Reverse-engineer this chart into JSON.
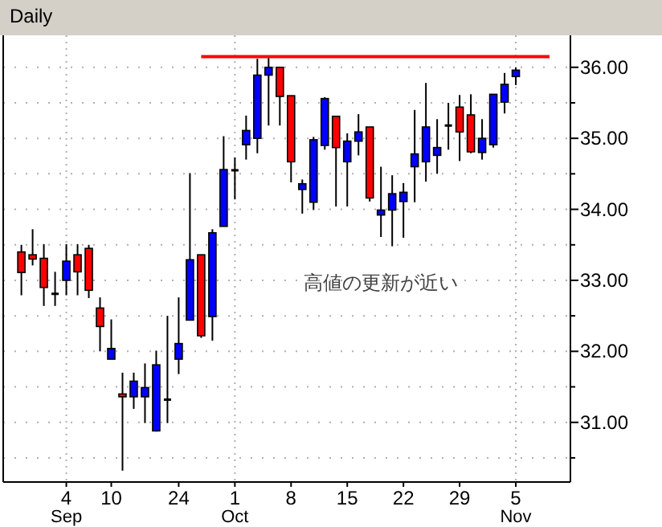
{
  "chart_data": {
    "type": "candlestick",
    "title": "Daily",
    "categories": [
      null,
      null,
      null,
      null,
      "4\nSep",
      null,
      null,
      null,
      "10",
      null,
      null,
      null,
      null,
      null,
      "24",
      null,
      null,
      null,
      null,
      "1\nOct",
      null,
      null,
      null,
      null,
      "8",
      null,
      null,
      null,
      null,
      "15",
      null,
      null,
      null,
      null,
      "22",
      null,
      null,
      null,
      null,
      "29",
      null,
      null,
      null,
      null,
      "5\nNov",
      null,
      null,
      null
    ],
    "ohlc": [
      [
        33.4,
        33.5,
        32.79,
        33.11
      ],
      [
        33.36,
        33.72,
        33.21,
        33.3
      ],
      [
        33.31,
        33.51,
        32.64,
        32.9
      ],
      [
        32.81,
        33.12,
        32.64,
        32.81
      ],
      [
        33.0,
        33.51,
        32.79,
        33.27
      ],
      [
        33.36,
        33.51,
        32.79,
        33.12
      ],
      [
        33.45,
        33.5,
        32.75,
        32.86
      ],
      [
        32.61,
        32.76,
        32.0,
        32.35
      ],
      [
        31.89,
        32.45,
        31.89,
        32.04
      ],
      [
        31.4,
        31.7,
        30.32,
        31.36
      ],
      [
        31.36,
        31.7,
        31.19,
        31.58
      ],
      [
        31.36,
        31.83,
        30.99,
        31.49
      ],
      [
        30.88,
        32.01,
        30.87,
        31.81
      ],
      [
        31.32,
        32.5,
        30.99,
        31.32
      ],
      [
        31.89,
        32.76,
        31.68,
        32.11
      ],
      [
        32.44,
        34.51,
        32.44,
        33.29
      ],
      [
        33.36,
        33.36,
        32.19,
        32.22
      ],
      [
        32.49,
        33.72,
        32.15,
        33.67
      ],
      [
        33.76,
        35.03,
        33.76,
        34.56
      ],
      [
        34.55,
        34.73,
        34.14,
        34.55
      ],
      [
        34.91,
        35.32,
        34.7,
        35.11
      ],
      [
        35.0,
        36.12,
        34.79,
        35.89
      ],
      [
        35.89,
        36.13,
        35.18,
        36.0
      ],
      [
        36.0,
        36.0,
        35.18,
        35.59
      ],
      [
        35.6,
        35.6,
        34.38,
        34.67
      ],
      [
        34.28,
        34.42,
        33.94,
        34.36
      ],
      [
        34.1,
        35.02,
        33.99,
        34.98
      ],
      [
        34.9,
        35.58,
        34.84,
        35.56
      ],
      [
        35.31,
        35.31,
        34.04,
        34.87
      ],
      [
        34.67,
        35.07,
        34.04,
        34.96
      ],
      [
        34.96,
        35.34,
        34.76,
        35.09
      ],
      [
        35.16,
        35.16,
        34.11,
        34.16
      ],
      [
        33.92,
        34.6,
        33.61,
        33.99
      ],
      [
        33.99,
        34.48,
        33.48,
        34.22
      ],
      [
        34.11,
        34.37,
        33.6,
        34.24
      ],
      [
        34.6,
        35.4,
        34.1,
        34.78
      ],
      [
        34.67,
        35.78,
        34.39,
        35.16
      ],
      [
        34.76,
        35.27,
        34.5,
        34.87
      ],
      [
        35.18,
        35.5,
        34.84,
        35.18
      ],
      [
        35.44,
        35.61,
        34.68,
        35.09
      ],
      [
        35.33,
        35.62,
        34.79,
        34.81
      ],
      [
        34.8,
        35.27,
        34.7,
        35.0
      ],
      [
        34.91,
        35.62,
        34.87,
        35.62
      ],
      [
        35.51,
        35.92,
        35.35,
        35.76
      ],
      [
        35.87,
        36.0,
        35.75,
        35.96
      ],
      null,
      null,
      null
    ],
    "colors": [
      "#ff0000",
      "#ff0000",
      "#ff0000",
      "#000000",
      "#0000ff",
      "#ff0000",
      "#ff0000",
      "#ff0000",
      "#0000ff",
      "#ff0000",
      "#0000ff",
      "#0000ff",
      "#0000ff",
      "#000000",
      "#0000ff",
      "#0000ff",
      "#ff0000",
      "#0000ff",
      "#0000ff",
      "#000000",
      "#0000ff",
      "#0000ff",
      "#0000ff",
      "#ff0000",
      "#ff0000",
      "#0000ff",
      "#0000ff",
      "#0000ff",
      "#ff0000",
      "#0000ff",
      "#0000ff",
      "#ff0000",
      "#0000ff",
      "#0000ff",
      "#0000ff",
      "#0000ff",
      "#0000ff",
      "#0000ff",
      "#000000",
      "#ff0000",
      "#ff0000",
      "#0000ff",
      "#0000ff",
      "#0000ff",
      "#0000ff",
      null,
      null,
      null
    ],
    "series": [
      {
        "type": "line",
        "color": "#ff0000",
        "values": [
          null,
          null,
          null,
          null,
          null,
          null,
          null,
          null,
          null,
          null,
          null,
          null,
          null,
          null,
          null,
          null,
          36.15,
          36.15,
          36.15,
          36.15,
          36.15,
          36.15,
          36.15,
          36.15,
          36.15,
          36.15,
          36.15,
          36.15,
          36.15,
          36.15,
          36.15,
          36.15,
          36.15,
          36.15,
          36.15,
          36.15,
          36.15,
          36.15,
          36.15,
          36.15,
          36.15,
          36.15,
          36.15,
          36.15,
          36.15,
          36.15,
          36.15,
          36.15
        ]
      }
    ],
    "ylim": [
      30.16,
      36.45
    ],
    "yticks": [
      {
        "value": 30.5,
        "label": null
      },
      {
        "value": 31,
        "label": "31.00"
      },
      {
        "value": 31.5,
        "label": null
      },
      {
        "value": 32,
        "label": "32.00"
      },
      {
        "value": 32.5,
        "label": null
      },
      {
        "value": 33,
        "label": "33.00"
      },
      {
        "value": 33.5,
        "label": null
      },
      {
        "value": 34,
        "label": "34.00"
      },
      {
        "value": 34.5,
        "label": null
      },
      {
        "value": 35,
        "label": "35.00"
      },
      {
        "value": 35.5,
        "label": null
      },
      {
        "value": 36,
        "label": "36.00"
      }
    ],
    "grid": true,
    "annotations": [
      "高値の更新が近い"
    ]
  }
}
